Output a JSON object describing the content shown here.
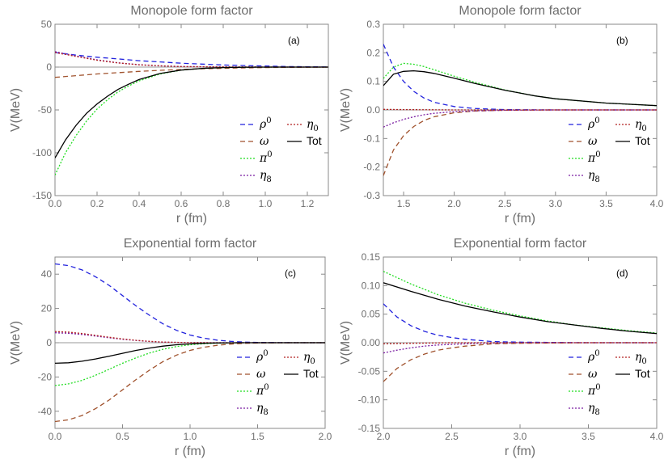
{
  "chart_data": [
    {
      "id": "a",
      "type": "line",
      "title": "Monopole form factor",
      "panel_label": "(a)",
      "xlabel": "r (fm)",
      "ylabel": "V(MeV)",
      "xlim": [
        0,
        1.3
      ],
      "ylim": [
        -150,
        50
      ],
      "xticks": [
        0.0,
        0.2,
        0.4,
        0.6,
        0.8,
        1.0,
        1.2
      ],
      "xtick_labels": [
        "0.0",
        "0.2",
        "0.4",
        "0.6",
        "0.8",
        "1.0",
        "1.2"
      ],
      "yticks": [
        -150,
        -100,
        -50,
        0,
        50
      ],
      "ytick_labels": [
        "-150",
        "-100",
        "-50",
        "0",
        "50"
      ],
      "legend_position": "lower-right",
      "series": [
        {
          "name": "ρ0",
          "color": "#2222dd",
          "dash": "6,4",
          "x": [
            0,
            0.1,
            0.2,
            0.3,
            0.4,
            0.5,
            0.6,
            0.7,
            0.8,
            0.9,
            1.0,
            1.1,
            1.2,
            1.3
          ],
          "y": [
            17,
            14,
            11.5,
            9.5,
            7.5,
            6,
            4.5,
            3.5,
            2.5,
            1.8,
            1.2,
            0.7,
            0.4,
            0.2
          ]
        },
        {
          "name": "ω",
          "color": "#a0522d",
          "dash": "6,4",
          "x": [
            0,
            0.1,
            0.2,
            0.3,
            0.4,
            0.5,
            0.6,
            0.7,
            0.8,
            0.9,
            1.0,
            1.1,
            1.2,
            1.3
          ],
          "y": [
            -12,
            -10,
            -8,
            -6.5,
            -5,
            -3.8,
            -2.8,
            -2,
            -1.4,
            -0.9,
            -0.6,
            -0.35,
            -0.2,
            -0.1
          ]
        },
        {
          "name": "π0",
          "color": "#22dd22",
          "dash": "2,2",
          "x": [
            0,
            0.05,
            0.1,
            0.15,
            0.2,
            0.25,
            0.3,
            0.35,
            0.4,
            0.5,
            0.6,
            0.7,
            0.8,
            0.9,
            1.0,
            1.1,
            1.2,
            1.3
          ],
          "y": [
            -126,
            -100,
            -80,
            -63,
            -49,
            -38,
            -29,
            -22,
            -16,
            -8,
            -3.5,
            -1.5,
            -0.5,
            -0.2,
            -0.1,
            0,
            0,
            0
          ]
        },
        {
          "name": "η8",
          "color": "#7b1fa2",
          "dash": "2,2",
          "x": [
            0,
            0.1,
            0.2,
            0.3,
            0.4,
            0.5,
            0.6,
            0.8,
            1.0,
            1.3
          ],
          "y": [
            18,
            13,
            8.5,
            5,
            2.8,
            1.5,
            0.7,
            0.2,
            0,
            0
          ]
        },
        {
          "name": "η0",
          "color": "#b22222",
          "dash": "2,2",
          "x": [
            0,
            0.1,
            0.2,
            0.3,
            0.4,
            0.5,
            0.6,
            0.8,
            1.0,
            1.3
          ],
          "y": [
            17,
            12.5,
            8,
            4.8,
            2.6,
            1.4,
            0.6,
            0.2,
            0,
            0
          ]
        },
        {
          "name": "Tot",
          "color": "#000000",
          "dash": "",
          "x": [
            0,
            0.05,
            0.1,
            0.15,
            0.2,
            0.25,
            0.3,
            0.35,
            0.4,
            0.5,
            0.6,
            0.7,
            0.8,
            0.9,
            1.0,
            1.1,
            1.2,
            1.3
          ],
          "y": [
            -106,
            -85,
            -68,
            -54,
            -43,
            -34,
            -26,
            -20,
            -14.5,
            -7.5,
            -3.5,
            -1.5,
            -0.6,
            -0.2,
            0,
            0,
            0,
            0
          ]
        }
      ]
    },
    {
      "id": "b",
      "type": "line",
      "title": "Monopole form factor",
      "panel_label": "(b)",
      "xlabel": "r (fm)",
      "ylabel": "V(MeV)",
      "xlim": [
        1.3,
        4.0
      ],
      "ylim": [
        -0.3,
        0.3
      ],
      "xticks": [
        1.5,
        2.0,
        2.5,
        3.0,
        3.5,
        4.0
      ],
      "xtick_labels": [
        "1.5",
        "2.0",
        "2.5",
        "3.0",
        "3.5",
        "4.0"
      ],
      "yticks": [
        -0.3,
        -0.2,
        -0.1,
        0.0,
        0.1,
        0.2,
        0.3
      ],
      "ytick_labels": [
        "-0.3",
        "-0.2",
        "-0.1",
        "0.0",
        "0.1",
        "0.2",
        "0.3"
      ],
      "legend_position": "lower-right",
      "series": [
        {
          "name": "ρ0",
          "color": "#2222dd",
          "dash": "6,4",
          "x": [
            1.3,
            1.4,
            1.5,
            1.6,
            1.7,
            1.8,
            2.0,
            2.2,
            2.5,
            3.0,
            4.0
          ],
          "y": [
            0.23,
            0.15,
            0.1,
            0.065,
            0.042,
            0.027,
            0.012,
            0.005,
            0.001,
            0,
            0
          ]
        },
        {
          "name": "ω",
          "color": "#a0522d",
          "dash": "6,4",
          "x": [
            1.3,
            1.4,
            1.5,
            1.6,
            1.7,
            1.8,
            2.0,
            2.2,
            2.5,
            3.0,
            4.0
          ],
          "y": [
            -0.23,
            -0.14,
            -0.09,
            -0.058,
            -0.037,
            -0.024,
            -0.01,
            -0.004,
            -0.001,
            0,
            0
          ]
        },
        {
          "name": "π0",
          "color": "#22dd22",
          "dash": "2,2",
          "x": [
            1.3,
            1.4,
            1.5,
            1.6,
            1.7,
            1.8,
            2.0,
            2.2,
            2.5,
            2.8,
            3.0,
            3.5,
            4.0
          ],
          "y": [
            0.11,
            0.15,
            0.163,
            0.16,
            0.152,
            0.141,
            0.118,
            0.097,
            0.07,
            0.049,
            0.039,
            0.024,
            0.015
          ]
        },
        {
          "name": "η8",
          "color": "#7b1fa2",
          "dash": "2,2",
          "x": [
            1.3,
            1.4,
            1.5,
            1.6,
            1.7,
            1.8,
            2.0,
            2.2,
            2.5,
            3.0,
            4.0
          ],
          "y": [
            -0.06,
            -0.045,
            -0.033,
            -0.024,
            -0.017,
            -0.012,
            -0.006,
            -0.003,
            -0.001,
            0,
            0
          ]
        },
        {
          "name": "η0",
          "color": "#b22222",
          "dash": "2,2",
          "x": [
            1.3,
            1.5,
            2.0,
            2.5,
            3.0,
            4.0
          ],
          "y": [
            0.002,
            0.001,
            0,
            0,
            0,
            0
          ]
        },
        {
          "name": "Tot",
          "color": "#000000",
          "dash": "",
          "x": [
            1.3,
            1.4,
            1.5,
            1.6,
            1.7,
            1.8,
            2.0,
            2.2,
            2.5,
            2.8,
            3.0,
            3.5,
            4.0
          ],
          "y": [
            0.085,
            0.125,
            0.135,
            0.137,
            0.134,
            0.128,
            0.111,
            0.093,
            0.069,
            0.049,
            0.039,
            0.024,
            0.015
          ]
        }
      ]
    },
    {
      "id": "c",
      "type": "line",
      "title": "Exponential form factor",
      "panel_label": "(c)",
      "xlabel": "r (fm)",
      "ylabel": "V(MeV)",
      "xlim": [
        0,
        2.0
      ],
      "ylim": [
        -50,
        50
      ],
      "xticks": [
        0.0,
        0.5,
        1.0,
        1.5,
        2.0
      ],
      "xtick_labels": [
        "0.0",
        "0.5",
        "1.0",
        "1.5",
        "2.0"
      ],
      "yticks": [
        -40,
        -20,
        0,
        20,
        40
      ],
      "ytick_labels": [
        "-40",
        "-20",
        "0",
        "20",
        "40"
      ],
      "legend_position": "lower-right",
      "series": [
        {
          "name": "ρ0",
          "color": "#2222dd",
          "dash": "6,4",
          "x": [
            0,
            0.1,
            0.2,
            0.3,
            0.4,
            0.5,
            0.6,
            0.7,
            0.8,
            0.9,
            1.0,
            1.1,
            1.2,
            1.3,
            1.4,
            1.5,
            1.6,
            1.8,
            2.0
          ],
          "y": [
            46,
            45,
            42.5,
            38.5,
            33.5,
            27.5,
            21.5,
            16,
            11,
            7.2,
            4.5,
            2.7,
            1.5,
            0.8,
            0.4,
            0.2,
            0.1,
            0,
            0
          ]
        },
        {
          "name": "ω",
          "color": "#a0522d",
          "dash": "6,4",
          "x": [
            0,
            0.1,
            0.2,
            0.3,
            0.4,
            0.5,
            0.6,
            0.7,
            0.8,
            0.9,
            1.0,
            1.1,
            1.2,
            1.3,
            1.4,
            1.5,
            1.6,
            1.8,
            2.0
          ],
          "y": [
            -46,
            -45,
            -42.5,
            -38.5,
            -33.5,
            -27.5,
            -21.5,
            -16,
            -11,
            -7.2,
            -4.5,
            -2.7,
            -1.5,
            -0.8,
            -0.4,
            -0.2,
            -0.1,
            0,
            0
          ]
        },
        {
          "name": "π0",
          "color": "#22dd22",
          "dash": "2,2",
          "x": [
            0,
            0.1,
            0.2,
            0.3,
            0.4,
            0.5,
            0.6,
            0.7,
            0.8,
            0.9,
            1.0,
            1.1,
            1.2,
            1.4,
            1.6,
            2.0
          ],
          "y": [
            -25,
            -24,
            -22,
            -19,
            -15.5,
            -12,
            -8.8,
            -6,
            -3.8,
            -2.2,
            -1.2,
            -0.6,
            -0.3,
            0,
            0,
            0
          ]
        },
        {
          "name": "η8",
          "color": "#7b1fa2",
          "dash": "2,2",
          "x": [
            0,
            0.1,
            0.2,
            0.3,
            0.4,
            0.5,
            0.6,
            0.7,
            0.8,
            1.0,
            1.2,
            2.0
          ],
          "y": [
            5.8,
            5.5,
            4.8,
            3.9,
            2.9,
            2.0,
            1.3,
            0.7,
            0.35,
            0.05,
            0,
            0
          ]
        },
        {
          "name": "η0",
          "color": "#b22222",
          "dash": "2,2",
          "x": [
            0,
            0.1,
            0.2,
            0.3,
            0.4,
            0.5,
            0.6,
            0.7,
            0.8,
            1.0,
            1.2,
            2.0
          ],
          "y": [
            6.5,
            6.2,
            5.4,
            4.3,
            3.2,
            2.2,
            1.4,
            0.8,
            0.4,
            0.05,
            0,
            0
          ]
        },
        {
          "name": "Tot",
          "color": "#000000",
          "dash": "",
          "x": [
            0,
            0.1,
            0.2,
            0.3,
            0.4,
            0.5,
            0.6,
            0.7,
            0.8,
            0.9,
            1.0,
            1.1,
            1.2,
            1.4,
            1.6,
            2.0
          ],
          "y": [
            -12,
            -11.7,
            -10.8,
            -9.5,
            -7.9,
            -6.2,
            -4.5,
            -3.1,
            -2.0,
            -1.2,
            -0.7,
            -0.35,
            -0.15,
            0,
            0,
            0
          ]
        }
      ]
    },
    {
      "id": "d",
      "type": "line",
      "title": "Exponential form factor",
      "panel_label": "(d)",
      "xlabel": "r (fm)",
      "ylabel": "V(MeV)",
      "xlim": [
        2.0,
        4.0
      ],
      "ylim": [
        -0.15,
        0.15
      ],
      "xticks": [
        2.0,
        2.5,
        3.0,
        3.5,
        4.0
      ],
      "xtick_labels": [
        "2.0",
        "2.5",
        "3.0",
        "3.5",
        "4.0"
      ],
      "yticks": [
        -0.15,
        -0.1,
        -0.05,
        0.0,
        0.05,
        0.1,
        0.15
      ],
      "ytick_labels": [
        "-0.15",
        "-0.10",
        "-0.05",
        "0.00",
        "0.05",
        "0.10",
        "0.15"
      ],
      "legend_position": "lower-right",
      "series": [
        {
          "name": "ρ0",
          "color": "#2222dd",
          "dash": "6,4",
          "x": [
            2.0,
            2.1,
            2.2,
            2.3,
            2.4,
            2.5,
            2.6,
            2.8,
            3.0,
            3.5,
            4.0
          ],
          "y": [
            0.068,
            0.045,
            0.03,
            0.02,
            0.013,
            0.009,
            0.006,
            0.002,
            0.001,
            0,
            0
          ]
        },
        {
          "name": "ω",
          "color": "#a0522d",
          "dash": "6,4",
          "x": [
            2.0,
            2.1,
            2.2,
            2.3,
            2.4,
            2.5,
            2.6,
            2.8,
            3.0,
            3.5,
            4.0
          ],
          "y": [
            -0.068,
            -0.045,
            -0.03,
            -0.02,
            -0.013,
            -0.009,
            -0.006,
            -0.002,
            -0.001,
            0,
            0
          ]
        },
        {
          "name": "π0",
          "color": "#22dd22",
          "dash": "2,2",
          "x": [
            2.0,
            2.2,
            2.4,
            2.6,
            2.8,
            3.0,
            3.2,
            3.4,
            3.6,
            3.8,
            4.0
          ],
          "y": [
            0.125,
            0.103,
            0.084,
            0.069,
            0.057,
            0.047,
            0.038,
            0.031,
            0.026,
            0.021,
            0.017
          ]
        },
        {
          "name": "η8",
          "color": "#7b1fa2",
          "dash": "2,2",
          "x": [
            2.0,
            2.1,
            2.2,
            2.3,
            2.4,
            2.5,
            2.7,
            3.0,
            3.5,
            4.0
          ],
          "y": [
            -0.018,
            -0.013,
            -0.009,
            -0.006,
            -0.004,
            -0.003,
            -0.001,
            0,
            0,
            0
          ]
        },
        {
          "name": "η0",
          "color": "#b22222",
          "dash": "2,2",
          "x": [
            2.0,
            2.2,
            2.5,
            3.0,
            4.0
          ],
          "y": [
            -0.002,
            -0.001,
            0,
            0,
            0
          ]
        },
        {
          "name": "Tot",
          "color": "#000000",
          "dash": "",
          "x": [
            2.0,
            2.2,
            2.4,
            2.6,
            2.8,
            3.0,
            3.2,
            3.4,
            3.6,
            3.8,
            4.0
          ],
          "y": [
            0.105,
            0.09,
            0.076,
            0.064,
            0.054,
            0.045,
            0.037,
            0.031,
            0.025,
            0.02,
            0.016
          ]
        }
      ]
    }
  ]
}
